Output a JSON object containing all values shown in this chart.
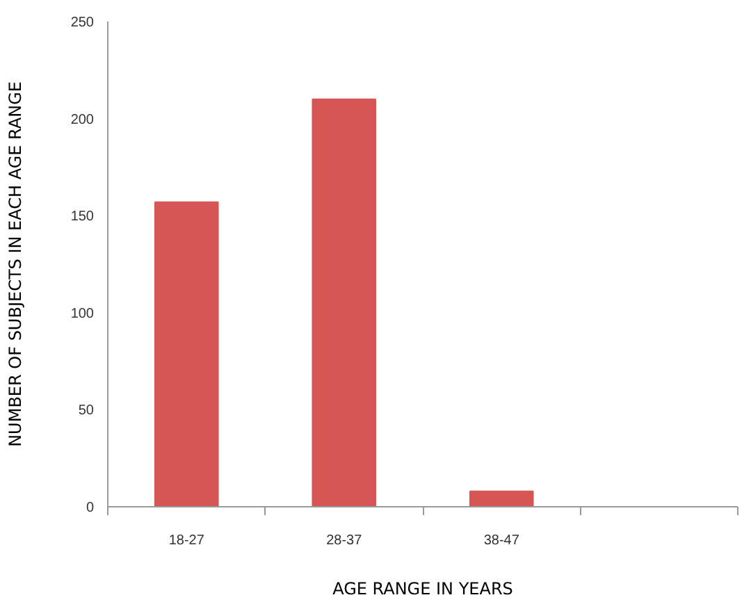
{
  "chart_data": {
    "type": "bar",
    "xlabel": "AGE RANGE IN YEARS",
    "ylabel": "NUMBER OF SUBJECTS IN EACH AGE RANGE",
    "categories": [
      "18-27",
      "28-37",
      "38-47",
      null
    ],
    "values": [
      157,
      210,
      8,
      null
    ],
    "color": "#d55654",
    "ylim": [
      0,
      250
    ],
    "yticks": [
      0,
      50,
      100,
      150,
      200,
      250
    ],
    "grid": false
  }
}
